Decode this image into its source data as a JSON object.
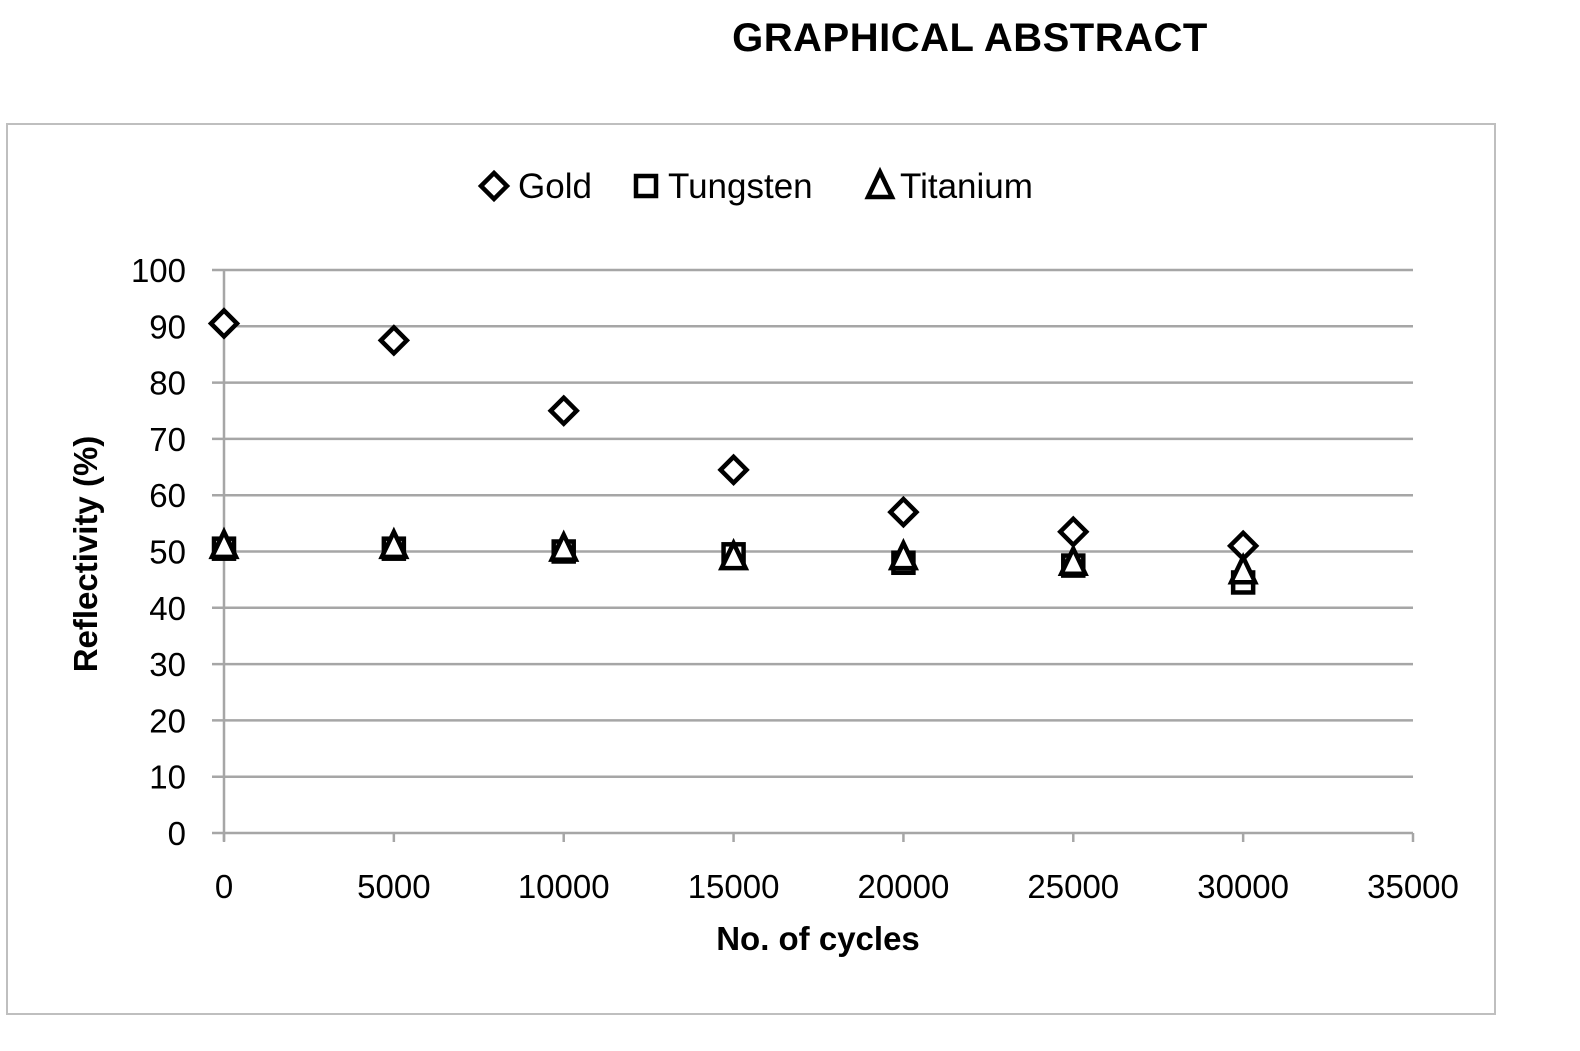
{
  "page": {
    "title": "GRAPHICAL ABSTRACT"
  },
  "chart_data": {
    "type": "scatter",
    "title": "",
    "xlabel": "No. of cycles",
    "ylabel": "Reflectivity (%)",
    "xlim": [
      0,
      35000
    ],
    "ylim": [
      0,
      100
    ],
    "x_ticks": [
      0,
      5000,
      10000,
      15000,
      20000,
      25000,
      30000,
      35000
    ],
    "y_ticks": [
      0,
      10,
      20,
      30,
      40,
      50,
      60,
      70,
      80,
      90,
      100
    ],
    "grid": "horizontal major gridlines",
    "legend_position": "top",
    "x": [
      0,
      5000,
      10000,
      15000,
      20000,
      25000,
      30000
    ],
    "series": [
      {
        "name": "Gold",
        "marker": "diamond",
        "color": "#000000",
        "values": [
          90.5,
          87.5,
          75,
          64.5,
          57,
          53.5,
          51
        ]
      },
      {
        "name": "Tungsten",
        "marker": "square",
        "color": "#000000",
        "values": [
          50.5,
          50.5,
          50,
          49.5,
          48,
          47.5,
          44.5
        ]
      },
      {
        "name": "Titanium",
        "marker": "triangle",
        "color": "#000000",
        "values": [
          51,
          51,
          50.5,
          49,
          49,
          48,
          46.5
        ]
      }
    ]
  }
}
